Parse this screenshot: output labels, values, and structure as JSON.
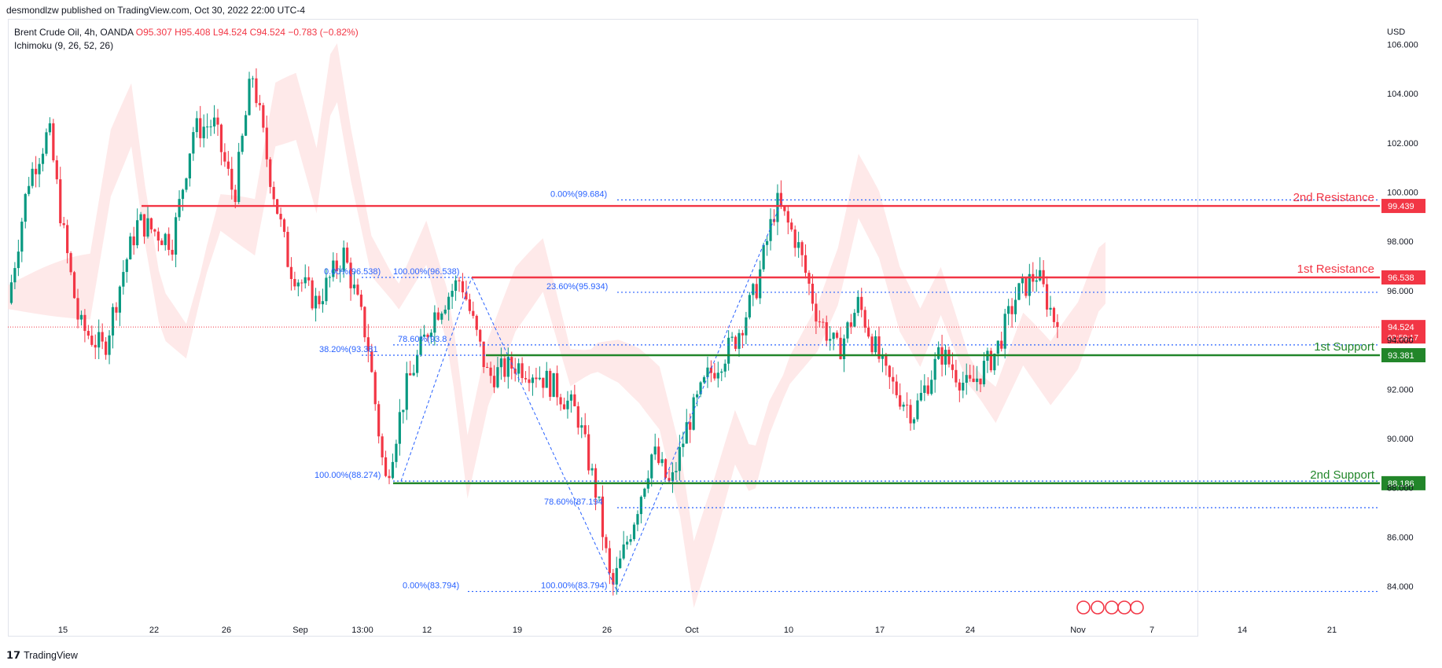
{
  "header": {
    "publish_line": "desmondlzw published on TradingView.com, Oct 30, 2022 22:00 UTC-4"
  },
  "legend": {
    "symbol": "Brent Crude Oil, 4h, OANDA",
    "open": "O95.307",
    "high": "H95.408",
    "low": "L94.524",
    "close": "C94.524",
    "change": "−0.783 (−0.82%)",
    "indicator": "Ichimoku (9, 26, 52, 26)"
  },
  "footer": {
    "brand": "TradingView",
    "logo_icon": "tradingview-logo-icon"
  },
  "colors": {
    "bull": "#089981",
    "bear": "#f23645",
    "resistance": "#f23645",
    "support": "#22862a",
    "fib": "#2962ff",
    "cloud_bear": "#fde1e1",
    "cloud_bull": "#e4f3e6"
  },
  "chart_data": {
    "type": "candlestick",
    "title": "Brent Crude Oil, 4h, OANDA",
    "currency": "USD",
    "ylim": [
      82.6,
      107.0
    ],
    "y_ticks": [
      84,
      86,
      88,
      90,
      92,
      94,
      96,
      98,
      100,
      102,
      104,
      106
    ],
    "y_tick_labels": [
      "84.000",
      "86.000",
      "88.000",
      "90.000",
      "92.000",
      "94.000",
      "96.000",
      "98.000",
      "100.000",
      "102.000",
      "104.000",
      "106.000"
    ],
    "x_tick_labels": [
      "15",
      "22",
      "26",
      "Sep",
      "13:00",
      "12",
      "19",
      "26",
      "Oct",
      "10",
      "17",
      "24",
      "Nov",
      "7",
      "14",
      "21"
    ],
    "price_path": [
      {
        "t": 0,
        "p": 95.5
      },
      {
        "t": 0.015,
        "p": 100.5
      },
      {
        "t": 0.03,
        "p": 102.5
      },
      {
        "t": 0.04,
        "p": 98.5
      },
      {
        "t": 0.052,
        "p": 94.6
      },
      {
        "t": 0.07,
        "p": 93.6
      },
      {
        "t": 0.085,
        "p": 97.0
      },
      {
        "t": 0.095,
        "p": 98.8
      },
      {
        "t": 0.12,
        "p": 98.0
      },
      {
        "t": 0.135,
        "p": 102.5
      },
      {
        "t": 0.15,
        "p": 102.8
      },
      {
        "t": 0.165,
        "p": 99.8
      },
      {
        "t": 0.178,
        "p": 104.9
      },
      {
        "t": 0.19,
        "p": 101.0
      },
      {
        "t": 0.205,
        "p": 97.0
      },
      {
        "t": 0.225,
        "p": 95.5
      },
      {
        "t": 0.245,
        "p": 97.5
      },
      {
        "t": 0.262,
        "p": 94.0
      },
      {
        "t": 0.275,
        "p": 88.2
      },
      {
        "t": 0.29,
        "p": 92.0
      },
      {
        "t": 0.31,
        "p": 95.0
      },
      {
        "t": 0.33,
        "p": 96.5
      },
      {
        "t": 0.35,
        "p": 92.5
      },
      {
        "t": 0.37,
        "p": 93.0
      },
      {
        "t": 0.385,
        "p": 92.7
      },
      {
        "t": 0.4,
        "p": 92.0
      },
      {
        "t": 0.415,
        "p": 91.0
      },
      {
        "t": 0.43,
        "p": 87.5
      },
      {
        "t": 0.44,
        "p": 83.8
      },
      {
        "t": 0.455,
        "p": 86.5
      },
      {
        "t": 0.47,
        "p": 89.5
      },
      {
        "t": 0.483,
        "p": 88.0
      },
      {
        "t": 0.495,
        "p": 90.5
      },
      {
        "t": 0.51,
        "p": 92.5
      },
      {
        "t": 0.53,
        "p": 94.0
      },
      {
        "t": 0.545,
        "p": 96.0
      },
      {
        "t": 0.56,
        "p": 99.6
      },
      {
        "t": 0.575,
        "p": 98.0
      },
      {
        "t": 0.59,
        "p": 95.0
      },
      {
        "t": 0.605,
        "p": 93.5
      },
      {
        "t": 0.62,
        "p": 95.5
      },
      {
        "t": 0.64,
        "p": 92.5
      },
      {
        "t": 0.66,
        "p": 91.0
      },
      {
        "t": 0.68,
        "p": 93.5
      },
      {
        "t": 0.7,
        "p": 92.0
      },
      {
        "t": 0.72,
        "p": 93.5
      },
      {
        "t": 0.735,
        "p": 95.8
      },
      {
        "t": 0.75,
        "p": 96.7
      },
      {
        "t": 0.765,
        "p": 94.5
      }
    ],
    "last_price": 94.524,
    "countdown": "02:59:17",
    "levels": [
      {
        "name": "2nd Resistance",
        "label": "2nd Resistance",
        "value": 99.439,
        "badge": "99.439",
        "kind": "resistance"
      },
      {
        "name": "1st Resistance",
        "label": "1st Resistance",
        "value": 96.538,
        "badge": "96.538",
        "kind": "resistance"
      },
      {
        "name": "1st Support",
        "label": "1st Support",
        "value": 93.381,
        "badge": "93.381",
        "kind": "support"
      },
      {
        "name": "2nd Support",
        "label": "2nd Support",
        "value": 88.186,
        "badge": "88.186",
        "kind": "support"
      }
    ],
    "fib_labels": [
      {
        "text": "0.00%(99.684)",
        "value": 99.684
      },
      {
        "text": "23.60%(95.934)",
        "value": 95.934
      },
      {
        "text": "0.00%(96.538)",
        "value": 96.538
      },
      {
        "text": "100.00%(96.538)",
        "value": 96.538
      },
      {
        "text": "78.60%(93.8",
        "value": 93.8
      },
      {
        "text": "38.20%(93.381",
        "value": 93.381
      },
      {
        "text": "100.00%(88.274)",
        "value": 88.274
      },
      {
        "text": "78.60%(87.194",
        "value": 87.194
      },
      {
        "text": "0.00%(83.794)",
        "value": 83.794
      },
      {
        "text": "100.00%(83.794)",
        "value": 83.794
      }
    ]
  }
}
